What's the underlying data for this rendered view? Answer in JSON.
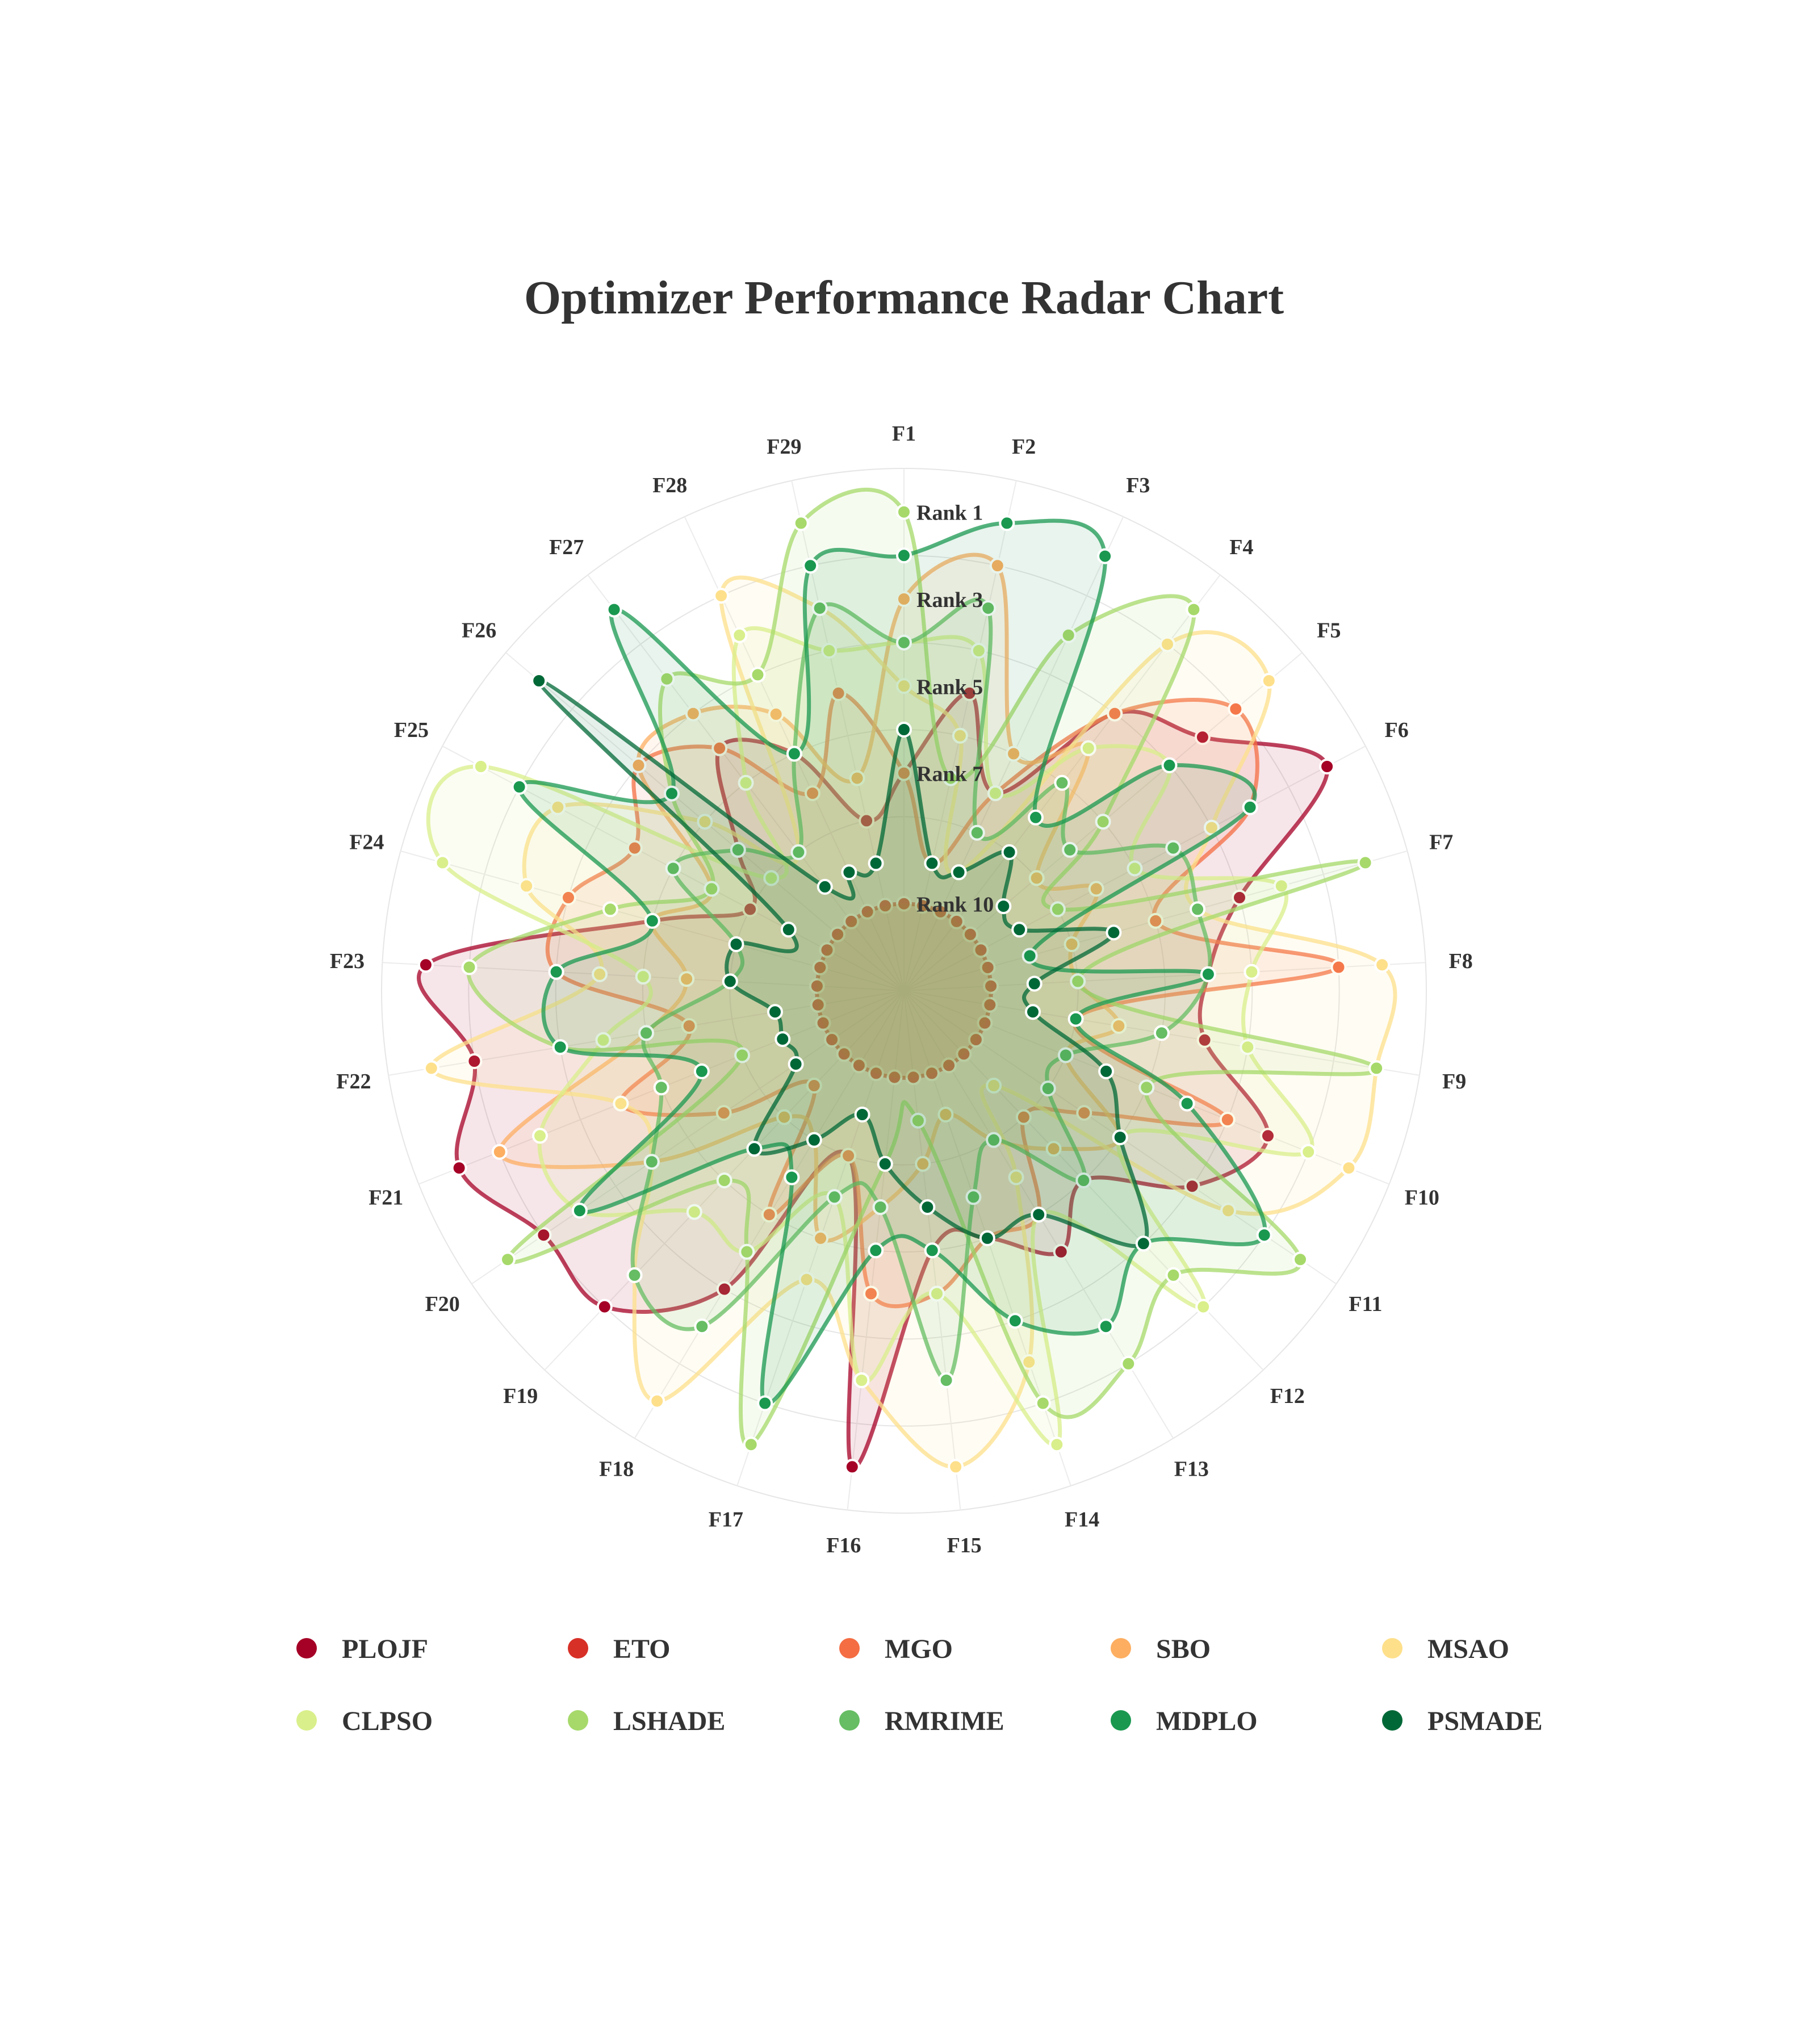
{
  "chart_data": {
    "type": "radar",
    "title": "Optimizer Performance Radar Chart",
    "axes": [
      "F1",
      "F2",
      "F3",
      "F4",
      "F5",
      "F6",
      "F7",
      "F8",
      "F9",
      "F10",
      "F11",
      "F12",
      "F13",
      "F14",
      "F15",
      "F16",
      "F17",
      "F18",
      "F19",
      "F20",
      "F21",
      "F22",
      "F23",
      "F24",
      "F25",
      "F26",
      "F27",
      "F28",
      "F29"
    ],
    "rank_labels": [
      "Rank 1",
      "Rank 3",
      "Rank 5",
      "Rank 7",
      "Rank 10"
    ],
    "rank_ticks": [
      1,
      3,
      5,
      7,
      10
    ],
    "r_range": [
      12,
      0
    ],
    "series": [
      {
        "name": "PLOJF",
        "color": "#a50026",
        "values": [
          7,
          5,
          7,
          4,
          3,
          1,
          4,
          5,
          5,
          3,
          4,
          6,
          5,
          6,
          6,
          1,
          8,
          4,
          2,
          2,
          1,
          2,
          1,
          6,
          8,
          7,
          5,
          6,
          8
        ]
      },
      {
        "name": "ETO",
        "color": "#d73027",
        "values": [
          10,
          10,
          10,
          10,
          10,
          10,
          10,
          10,
          10,
          10,
          10,
          10,
          10,
          10,
          10,
          10,
          10,
          10,
          10,
          10,
          10,
          10,
          10,
          10,
          10,
          10,
          10,
          10,
          10
        ]
      },
      {
        "name": "MGO",
        "color": "#f46d43",
        "values": [
          7,
          9,
          7,
          4,
          2,
          3,
          6,
          2,
          8,
          4,
          7,
          8,
          6,
          6,
          5,
          5,
          8,
          6,
          9,
          7,
          5,
          7,
          4,
          4,
          5,
          4,
          5,
          7,
          5
        ]
      },
      {
        "name": "SBO",
        "color": "#fdae61",
        "values": [
          3,
          2,
          6,
          5,
          8,
          7,
          8,
          8,
          7,
          8,
          6,
          7,
          8,
          9,
          8,
          7,
          6,
          8,
          8,
          5,
          2,
          6,
          7,
          6,
          7,
          4,
          4,
          5,
          7
        ]
      },
      {
        "name": "MSAO",
        "color": "#fee08b",
        "values": [
          5,
          6,
          9,
          2,
          1,
          4,
          5,
          1,
          1,
          1,
          3,
          9,
          7,
          3,
          1,
          3,
          5,
          1,
          3,
          5,
          5,
          1,
          5,
          3,
          3,
          6,
          8,
          2,
          3
        ]
      },
      {
        "name": "CLPSO",
        "color": "#d9ef8b",
        "values": [
          4,
          4,
          7,
          5,
          4,
          6,
          3,
          4,
          4,
          2,
          6,
          2,
          6,
          1,
          5,
          3,
          7,
          5,
          5,
          3,
          3,
          5,
          6,
          1,
          1,
          8,
          6,
          3,
          4
        ]
      },
      {
        "name": "LSHADE",
        "color": "#a6d96a",
        "values": [
          1,
          7,
          3,
          1,
          6,
          8,
          1,
          8,
          1,
          6,
          1,
          3,
          2,
          2,
          9,
          8,
          1,
          5,
          6,
          1,
          8,
          4,
          2,
          5,
          7,
          5,
          3,
          4,
          1
        ]
      },
      {
        "name": "RMRIME",
        "color": "#66bd63",
        "values": [
          4,
          3,
          8,
          6,
          7,
          5,
          5,
          5,
          6,
          8,
          8,
          6,
          8,
          7,
          3,
          7,
          7,
          3,
          3,
          5,
          6,
          6,
          8,
          8,
          6,
          7,
          8,
          6,
          3
        ]
      },
      {
        "name": "MDPLO",
        "color": "#1a9850",
        "values": [
          2,
          1,
          1,
          7,
          4,
          3,
          9,
          5,
          8,
          5,
          2,
          4,
          3,
          4,
          6,
          6,
          2,
          7,
          7,
          3,
          7,
          4,
          4,
          6,
          2,
          5,
          1,
          6,
          2
        ]
      },
      {
        "name": "PSMADE",
        "color": "#006837",
        "values": [
          6,
          9,
          9,
          8,
          9,
          9,
          7,
          9,
          9,
          7,
          6,
          4,
          6,
          6,
          7,
          8,
          9,
          8,
          7,
          9,
          9,
          9,
          8,
          8,
          9,
          1,
          9,
          9,
          9
        ]
      }
    ],
    "grid": true,
    "legend_placement": "bottom"
  }
}
